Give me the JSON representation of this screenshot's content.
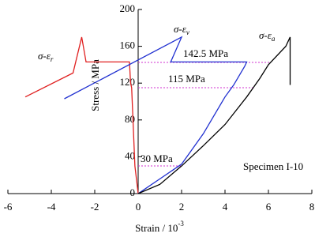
{
  "chart_data": {
    "type": "line",
    "xlabel": "Strain / 10",
    "xlabel_exponent": "-3",
    "ylabel": "Stress / MPa",
    "xlim": [
      -6,
      8
    ],
    "xticks": [
      -6,
      -4,
      -2,
      0,
      2,
      4,
      6,
      8
    ],
    "ylim": [
      0,
      200
    ],
    "yticks": [
      0,
      40,
      80,
      120,
      160,
      200
    ],
    "series": [
      {
        "name": "σ-ε",
        "subscript": "r",
        "color": "#e02020",
        "x": [
          0,
          -0.05,
          -0.15,
          -0.3,
          -0.35,
          -0.4,
          -2.4,
          -2.6,
          -3.0,
          -5.2
        ],
        "values": [
          0,
          10,
          30,
          115,
          120,
          143,
          143,
          170,
          131,
          105
        ]
      },
      {
        "name": "σ-ε",
        "subscript": "v",
        "color": "#2030d0",
        "x": [
          0,
          0.5,
          1,
          2,
          3,
          4,
          4.4,
          4.9,
          5.0,
          1.5,
          2.0,
          -3.4
        ],
        "values": [
          0,
          8,
          16,
          32,
          65,
          105,
          118,
          138,
          143,
          143,
          170,
          103
        ]
      },
      {
        "name": "σ-ε",
        "subscript": "a",
        "color": "#000000",
        "x": [
          0,
          1,
          2,
          3,
          4,
          5,
          5.6,
          6.0,
          6.8,
          7.0,
          7.0
        ],
        "values": [
          0,
          10,
          30,
          52,
          75,
          105,
          125,
          140,
          160,
          170,
          118
        ]
      }
    ],
    "reference_lines": [
      {
        "value": 142.5,
        "label": "142.5 MPa"
      },
      {
        "value": 115,
        "label": "115 MPa"
      },
      {
        "value": 30,
        "label": "30 MPa"
      }
    ],
    "annotation": "Specimen I-10"
  }
}
